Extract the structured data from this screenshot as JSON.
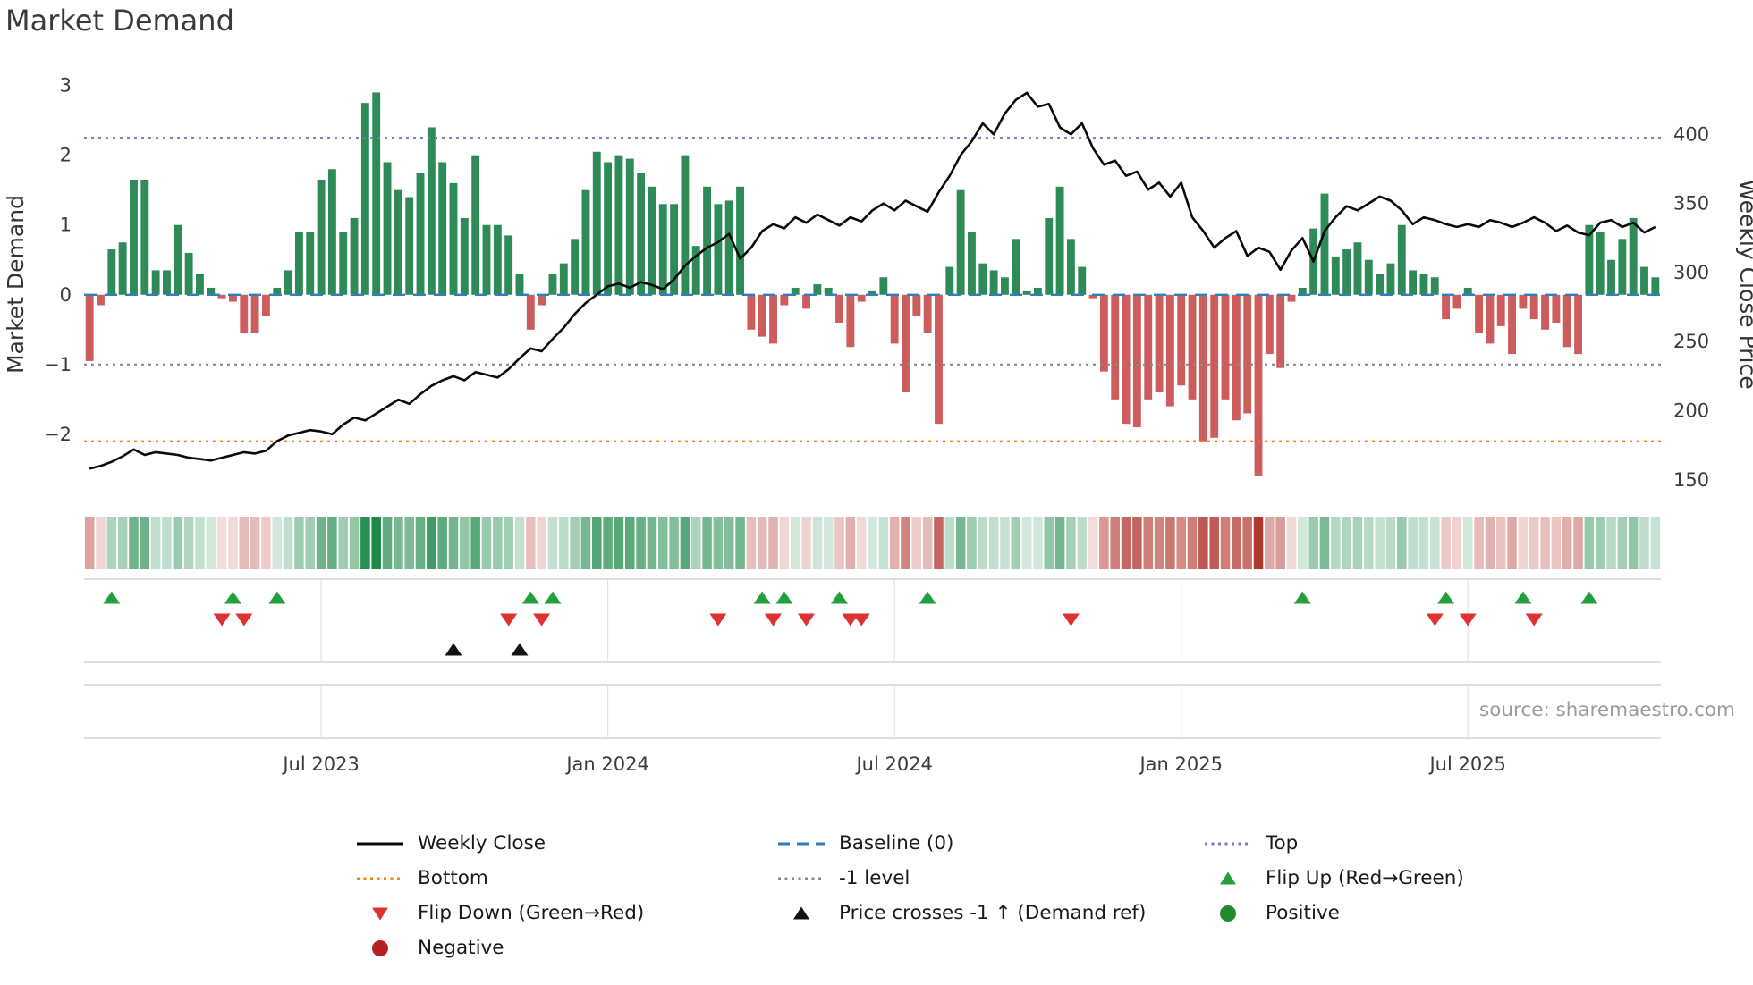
{
  "page": {
    "title": "Market Demand",
    "source": "source: sharemaestro.com"
  },
  "colors": {
    "positive": "#2e8b57",
    "negative": "#cd5c5c",
    "line": "#0a0a0a",
    "baseline": "#2f7ebe",
    "top": "#7a74d8",
    "bottom": "#ee8412",
    "minus_one": "#8a8a8a",
    "flip_up": "#23a03c",
    "flip_down": "#e03131",
    "price_cross": "#111111",
    "positive_dot": "#1f8b2c",
    "negative_dot": "#b22222",
    "heat_positive": "#1e8a4a",
    "heat_negative": "#b03028"
  },
  "chart_data": {
    "type": "bar+line",
    "title": "Market Demand",
    "x_tick_labels": [
      "Jul 2023",
      "Jan 2024",
      "Jul 2024",
      "Jan 2025",
      "Jul 2025"
    ],
    "x_tick_indices": [
      21,
      47,
      73,
      99,
      125
    ],
    "n_weeks": 143,
    "legend_position": "bottom",
    "left_axis": {
      "label": "Market Demand",
      "range": [
        -2.95,
        3.29
      ],
      "ticks": [
        {
          "v": 3,
          "label": "3"
        },
        {
          "v": 2,
          "label": "2"
        },
        {
          "v": 1,
          "label": "1"
        },
        {
          "v": 0,
          "label": "0"
        },
        {
          "v": -1,
          "label": "−1"
        },
        {
          "v": -2,
          "label": "−2"
        }
      ]
    },
    "right_axis": {
      "label": "Weekly Close Price",
      "range": [
        135,
        450
      ],
      "ticks": [
        {
          "v": 400,
          "label": "400"
        },
        {
          "v": 350,
          "label": "350"
        },
        {
          "v": 300,
          "label": "300"
        },
        {
          "v": 250,
          "label": "250"
        },
        {
          "v": 200,
          "label": "200"
        },
        {
          "v": 150,
          "label": "150"
        }
      ]
    },
    "levels": {
      "baseline": 0,
      "top": 2.25,
      "minus_one": -1,
      "bottom": -2.1
    },
    "series": [
      {
        "name": "Market Demand",
        "type": "bar",
        "values": [
          -0.95,
          -0.15,
          0.65,
          0.75,
          1.65,
          1.65,
          0.35,
          0.35,
          1.0,
          0.6,
          0.3,
          0.1,
          -0.05,
          -0.1,
          -0.55,
          -0.55,
          -0.3,
          0.1,
          0.35,
          0.9,
          0.9,
          1.65,
          1.8,
          0.9,
          1.1,
          2.75,
          2.9,
          1.9,
          1.5,
          1.4,
          1.75,
          2.4,
          1.9,
          1.6,
          1.1,
          2.0,
          1.0,
          1.0,
          0.85,
          0.3,
          -0.5,
          -0.15,
          0.3,
          0.45,
          0.8,
          1.5,
          2.05,
          1.9,
          2.0,
          1.95,
          1.75,
          1.55,
          1.3,
          1.3,
          2.0,
          0.7,
          1.55,
          1.3,
          1.35,
          1.55,
          -0.5,
          -0.6,
          -0.7,
          -0.15,
          0.1,
          -0.2,
          0.15,
          0.1,
          -0.4,
          -0.75,
          -0.1,
          0.05,
          0.25,
          -0.7,
          -1.4,
          -0.3,
          -0.55,
          -1.85,
          0.4,
          1.5,
          0.9,
          0.45,
          0.35,
          0.25,
          0.8,
          0.05,
          0.1,
          1.1,
          1.55,
          0.8,
          0.4,
          -0.05,
          -1.1,
          -1.5,
          -1.85,
          -1.9,
          -1.5,
          -1.4,
          -1.6,
          -1.3,
          -1.5,
          -2.1,
          -2.05,
          -1.5,
          -1.8,
          -1.7,
          -2.6,
          -0.85,
          -1.05,
          -0.1,
          0.1,
          0.95,
          1.45,
          0.55,
          0.65,
          0.75,
          0.5,
          0.3,
          0.45,
          1.0,
          0.35,
          0.3,
          0.25,
          -0.35,
          -0.2,
          0.1,
          -0.55,
          -0.7,
          -0.45,
          -0.85,
          -0.2,
          -0.35,
          -0.5,
          -0.4,
          -0.75,
          -0.85,
          1.0,
          0.9,
          0.5,
          0.8,
          1.1,
          0.4,
          0.25
        ]
      },
      {
        "name": "Weekly Close",
        "type": "line",
        "values": [
          158,
          160,
          163,
          167,
          172,
          168,
          170,
          169,
          168,
          166,
          165,
          164,
          166,
          168,
          170,
          169,
          171,
          178,
          182,
          184,
          186,
          185,
          183,
          190,
          195,
          193,
          198,
          203,
          208,
          205,
          212,
          218,
          222,
          225,
          222,
          228,
          226,
          224,
          230,
          238,
          245,
          243,
          252,
          260,
          270,
          278,
          284,
          290,
          292,
          289,
          293,
          291,
          288,
          295,
          305,
          312,
          318,
          322,
          328,
          310,
          318,
          330,
          335,
          332,
          340,
          336,
          342,
          338,
          334,
          340,
          337,
          345,
          350,
          345,
          352,
          348,
          344,
          358,
          370,
          385,
          395,
          408,
          400,
          415,
          425,
          430,
          420,
          422,
          405,
          400,
          408,
          390,
          378,
          381,
          370,
          373,
          360,
          365,
          355,
          365,
          340,
          330,
          318,
          325,
          330,
          312,
          318,
          315,
          302,
          316,
          325,
          308,
          330,
          340,
          348,
          345,
          350,
          355,
          352,
          345,
          335,
          340,
          338,
          335,
          333,
          335,
          333,
          338,
          336,
          333,
          336,
          340,
          336,
          330,
          334,
          329,
          327,
          336,
          338,
          333,
          336,
          329,
          333
        ]
      }
    ],
    "markers": {
      "flip_up_indices": [
        2,
        13,
        17,
        40,
        42,
        61,
        63,
        68,
        76,
        110,
        123,
        130,
        136
      ],
      "flip_down_indices": [
        12,
        14,
        38,
        41,
        57,
        62,
        65,
        69,
        70,
        89,
        122,
        125,
        131
      ],
      "price_cross_indices": [
        33,
        39
      ]
    }
  },
  "legend": {
    "items": [
      {
        "id": "weekly-close",
        "label": "Weekly Close",
        "swatch": "line-solid",
        "color": "#0a0a0a"
      },
      {
        "id": "bottom",
        "label": "Bottom",
        "swatch": "line-dotted",
        "color": "#ee8412"
      },
      {
        "id": "flip-down",
        "label": "Flip Down (Green→Red)",
        "swatch": "triangle-down",
        "color": "#e03131"
      },
      {
        "id": "negative",
        "label": "Negative",
        "swatch": "dot",
        "color": "#b22222"
      },
      {
        "id": "baseline",
        "label": "Baseline (0)",
        "swatch": "line-dashed",
        "color": "#2f7ebe"
      },
      {
        "id": "minus-1-level",
        "label": "-1 level",
        "swatch": "line-dotted",
        "color": "#8a8a8a"
      },
      {
        "id": "price-cross",
        "label": "Price crosses -1 ↑ (Demand ref)",
        "swatch": "triangle-up",
        "color": "#111111"
      },
      {
        "id": "top",
        "label": "Top",
        "swatch": "line-dotted",
        "color": "#7a74d8"
      },
      {
        "id": "flip-up",
        "label": "Flip Up (Red→Green)",
        "swatch": "triangle-up",
        "color": "#23a03c"
      },
      {
        "id": "positive",
        "label": "Positive",
        "swatch": "dot",
        "color": "#1f8b2c"
      }
    ]
  }
}
